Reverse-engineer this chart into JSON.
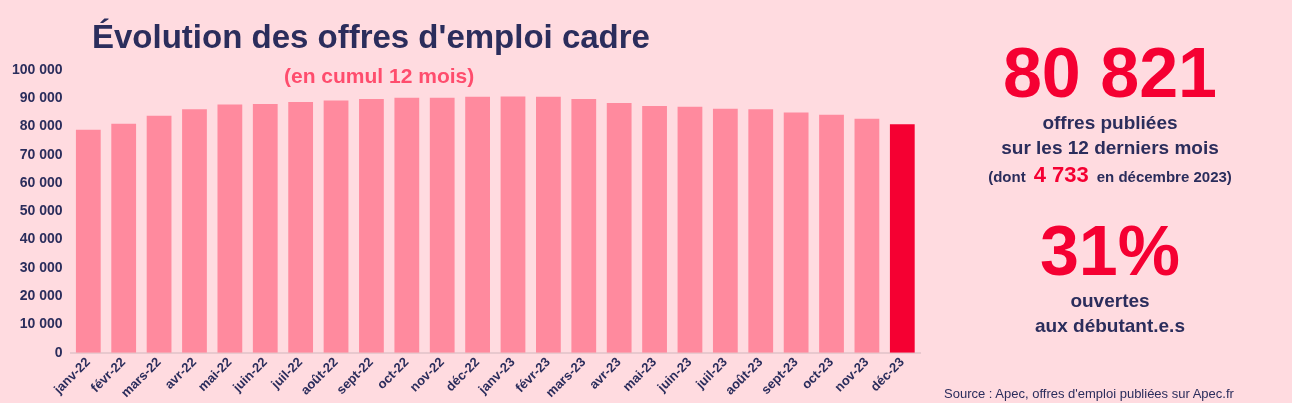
{
  "chart_data": {
    "type": "bar",
    "title": "Évolution des offres d'emploi cadre",
    "subtitle": "(en cumul 12 mois)",
    "categories": [
      "janv-22",
      "févr-22",
      "mars-22",
      "avr-22",
      "mai-22",
      "juin-22",
      "juil-22",
      "août-22",
      "sept-22",
      "oct-22",
      "nov-22",
      "déc-22",
      "janv-23",
      "févr-23",
      "mars-23",
      "avr-23",
      "mai-23",
      "juin-23",
      "juil-23",
      "août-23",
      "sept-23",
      "oct-23",
      "nov-23",
      "déc-23"
    ],
    "values": [
      78900,
      81000,
      83800,
      86100,
      87800,
      88000,
      88700,
      89200,
      89700,
      90200,
      90200,
      90500,
      90600,
      90500,
      89700,
      88300,
      87300,
      87000,
      86300,
      86100,
      85000,
      84200,
      82800,
      80821
    ],
    "colors": [
      "#ff8a9e",
      "#ff8a9e",
      "#ff8a9e",
      "#ff8a9e",
      "#ff8a9e",
      "#ff8a9e",
      "#ff8a9e",
      "#ff8a9e",
      "#ff8a9e",
      "#ff8a9e",
      "#ff8a9e",
      "#ff8a9e",
      "#ff8a9e",
      "#ff8a9e",
      "#ff8a9e",
      "#ff8a9e",
      "#ff8a9e",
      "#ff8a9e",
      "#ff8a9e",
      "#ff8a9e",
      "#ff8a9e",
      "#ff8a9e",
      "#ff8a9e",
      "#f50032"
    ],
    "ylim": [
      0,
      100000
    ],
    "yticks": [
      {
        "value": 0,
        "label": "0"
      },
      {
        "value": 10000,
        "label": "10 000"
      },
      {
        "value": 20000,
        "label": "20 000"
      },
      {
        "value": 30000,
        "label": "30 000"
      },
      {
        "value": 40000,
        "label": "40 000"
      },
      {
        "value": 50000,
        "label": "50 000"
      },
      {
        "value": 60000,
        "label": "60 000"
      },
      {
        "value": 70000,
        "label": "70 000"
      },
      {
        "value": 80000,
        "label": "80 000"
      },
      {
        "value": 90000,
        "label": "90 000"
      },
      {
        "value": 100000,
        "label": "100 000"
      }
    ],
    "grid": false,
    "legend": false,
    "annotations": [
      "80 821",
      "offres publiées",
      "sur les 12 derniers mois",
      "(dont",
      "4 733",
      "en décembre 2023)",
      "31%",
      "ouvertes",
      "aux débutant.e.s",
      "Source : Apec, offres d'emploi publiées sur Apec.fr"
    ]
  }
}
